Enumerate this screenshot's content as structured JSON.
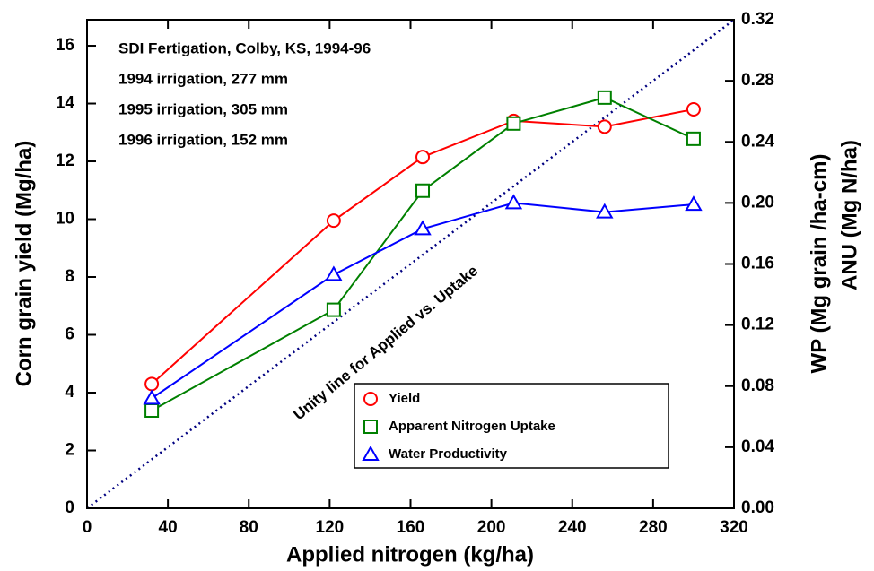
{
  "chart_data": {
    "type": "line",
    "x_label": "Applied nitrogen (kg/ha)",
    "y_label": "Corn grain yield (Mg/ha)",
    "y2_label": "WP (Mg grain /ha-cm)",
    "y2_label_2": "ANU (Mg N/ha)",
    "annotations": [
      "SDI Fertigation, Colby, KS, 1994-96",
      "1994 irrigation, 277 mm",
      "1995 irrigation, 305 mm",
      "1996 irrigation, 152 mm"
    ],
    "x": [
      32,
      122,
      166,
      211,
      256,
      300
    ],
    "series": [
      {
        "name": "Yield",
        "color": "#ff0000",
        "marker": "circle",
        "values": [
          4.3,
          9.95,
          12.15,
          13.4,
          13.2,
          13.8
        ]
      },
      {
        "name": "Apparent Nitrogen Uptake",
        "color": "#008000",
        "marker": "square",
        "axis": "y2",
        "values": [
          0.064,
          0.13,
          0.208,
          0.252,
          0.269,
          0.242
        ]
      },
      {
        "name": "Water Productivity",
        "color": "#0000ff",
        "marker": "triangle",
        "axis": "y2",
        "values": [
          0.072,
          0.153,
          0.183,
          0.2,
          0.194,
          0.199
        ]
      }
    ],
    "unity_line": {
      "label": "Unity line for Applied vs. Uptake",
      "color": "#000080",
      "x": [
        0,
        320
      ],
      "values": [
        0,
        0.32
      ]
    },
    "xlim": [
      0,
      320
    ],
    "xticks": [
      0,
      40,
      80,
      120,
      160,
      200,
      240,
      280,
      320
    ],
    "ylim": [
      0,
      16.9
    ],
    "yticks": [
      0,
      2,
      4,
      6,
      8,
      10,
      12,
      14,
      16
    ],
    "y2lim": [
      0,
      0.32
    ],
    "y2ticks": [
      {
        "value": 0,
        "label": "0.00"
      },
      0.04,
      0.08,
      0.12,
      0.16,
      {
        "value": 0.2,
        "label": "0.20"
      },
      0.24,
      0.28,
      0.32
    ],
    "legend": "lower right"
  }
}
